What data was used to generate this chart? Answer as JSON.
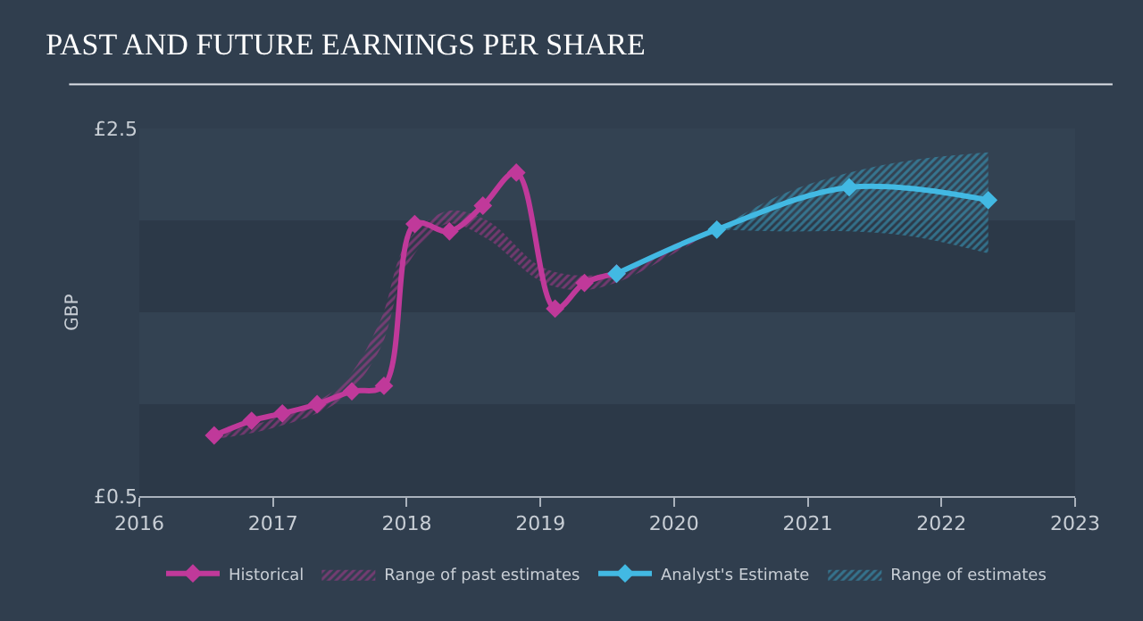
{
  "chart_data": {
    "type": "line",
    "title": "PAST AND FUTURE EARNINGS PER SHARE",
    "ylabel": "GBP",
    "xlim": [
      2016,
      2023
    ],
    "xticks": [
      2016,
      2017,
      2018,
      2019,
      2020,
      2021,
      2022,
      2023
    ],
    "ylim": [
      0.5,
      2.5
    ],
    "yticks": [
      {
        "value": 0.5,
        "label": "£0.5"
      },
      {
        "value": 2.5,
        "label": "£2.5"
      }
    ],
    "grid": false,
    "legend": "bottom",
    "marker": "diamond",
    "bands": [
      {
        "axis": "y",
        "from": 0.5,
        "to": 1.0,
        "color": "#2c3948"
      },
      {
        "axis": "y",
        "from": 1.5,
        "to": 2.0,
        "color": "#2c3948"
      }
    ],
    "series": [
      {
        "name": "Historical",
        "type": "line",
        "color": "#c0399a",
        "x": [
          2016.56,
          2016.84,
          2017.07,
          2017.33,
          2017.59,
          2017.83,
          2018.06,
          2018.32,
          2018.57,
          2018.82,
          2019.11,
          2019.33,
          2019.57
        ],
        "values": [
          0.83,
          0.91,
          0.95,
          1.0,
          1.07,
          1.1,
          1.98,
          1.94,
          2.08,
          2.26,
          1.52,
          1.66,
          1.71
        ]
      },
      {
        "name": "Range of past estimates",
        "type": "area",
        "color": "#b83a96",
        "x": [
          2016.56,
          2017.0,
          2017.5,
          2017.8,
          2018.0,
          2018.3,
          2018.6,
          2019.0,
          2019.3,
          2019.6,
          2020.0,
          2020.32
        ],
        "values": [
          null,
          null,
          null,
          null,
          null,
          null,
          null,
          null,
          null,
          null,
          null,
          null
        ],
        "lower": [
          0.81,
          0.87,
          1.02,
          1.3,
          1.75,
          1.98,
          1.9,
          1.67,
          1.62,
          1.67,
          1.82,
          1.95
        ],
        "upper": [
          0.84,
          0.92,
          1.1,
          1.45,
          1.88,
          2.05,
          2.0,
          1.75,
          1.7,
          1.73,
          1.87,
          1.95
        ]
      },
      {
        "name": "Analyst's Estimate",
        "type": "line",
        "color": "#42b9e3",
        "x": [
          2019.57,
          2020.32,
          2021.31,
          2022.35
        ],
        "values": [
          1.71,
          1.95,
          2.18,
          2.11
        ]
      },
      {
        "name": "Range of estimates",
        "type": "area",
        "color": "#3aa7cc",
        "x": [
          2020.32,
          2020.8,
          2021.31,
          2021.8,
          2022.35
        ],
        "values": [
          null,
          null,
          null,
          null,
          null
        ],
        "lower": [
          1.95,
          1.94,
          1.94,
          1.91,
          1.82
        ],
        "upper": [
          1.95,
          2.14,
          2.26,
          2.33,
          2.37
        ]
      }
    ]
  }
}
